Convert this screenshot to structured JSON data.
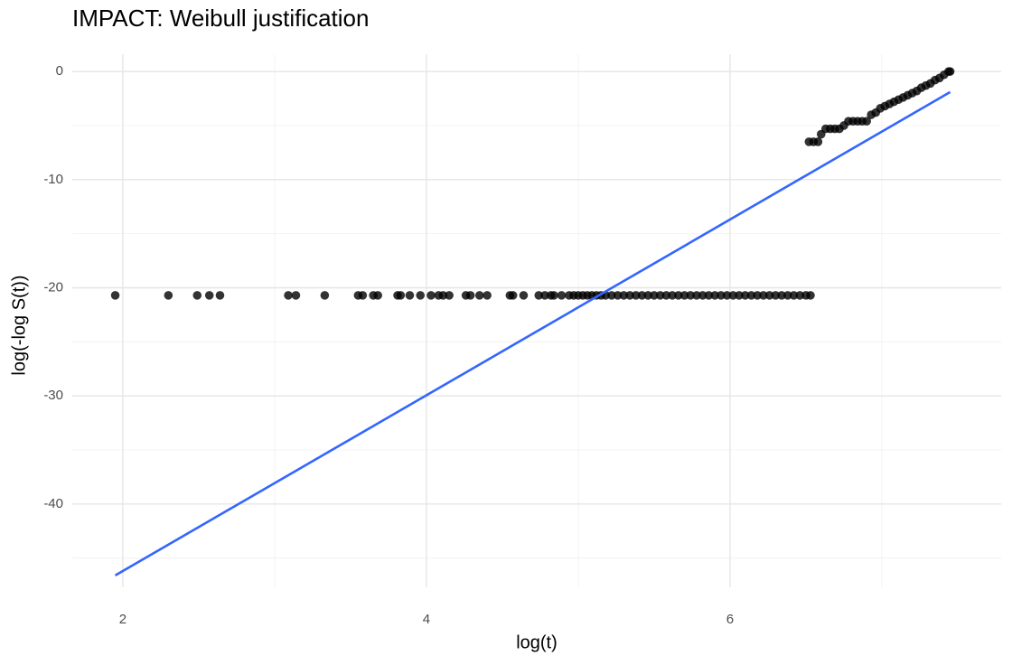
{
  "chart_data": {
    "type": "scatter",
    "title": "IMPACT: Weibull justification",
    "x_label": "log(t)",
    "y_label": "log(-log S(t))",
    "xlim": [
      1.667,
      7.786
    ],
    "ylim": [
      -47.7,
      1.6
    ],
    "xticks": [
      2,
      4,
      6
    ],
    "yticks": [
      0,
      -10,
      -20,
      -30,
      -40
    ],
    "x_minor_grid": [
      3,
      5,
      7
    ],
    "y_minor_grid": [
      -5,
      -15,
      -25,
      -35,
      -45
    ],
    "grid": true,
    "points": {
      "color": "#000000",
      "x": [
        1.95,
        2.3,
        2.49,
        2.57,
        2.64,
        3.09,
        3.14,
        3.33,
        3.55,
        3.58,
        3.65,
        3.68,
        3.81,
        3.83,
        3.89,
        3.96,
        4.03,
        4.08,
        4.11,
        4.15,
        4.26,
        4.29,
        4.35,
        4.4,
        4.55,
        4.57,
        4.64,
        4.74,
        4.78,
        4.82,
        4.84,
        4.89,
        4.94,
        4.97,
        5.0,
        5.03,
        5.06,
        5.09,
        5.12,
        5.15,
        5.18,
        5.22,
        5.26,
        5.3,
        5.34,
        5.38,
        5.42,
        5.46,
        5.5,
        5.54,
        5.58,
        5.62,
        5.66,
        5.7,
        5.74,
        5.78,
        5.82,
        5.86,
        5.9,
        5.94,
        5.98,
        6.02,
        6.06,
        6.1,
        6.14,
        6.18,
        6.22,
        6.26,
        6.3,
        6.34,
        6.38,
        6.42,
        6.46,
        6.5,
        6.53,
        6.52,
        6.55,
        6.58,
        6.6,
        6.63,
        6.66,
        6.69,
        6.72,
        6.75,
        6.78,
        6.81,
        6.84,
        6.87,
        6.9,
        6.93,
        6.96,
        6.99,
        7.02,
        7.05,
        7.08,
        7.11,
        7.14,
        7.17,
        7.2,
        7.23,
        7.26,
        7.29,
        7.32,
        7.35,
        7.38,
        7.41,
        7.44,
        7.45
      ],
      "y": [
        -20.7,
        -20.7,
        -20.7,
        -20.7,
        -20.7,
        -20.7,
        -20.7,
        -20.7,
        -20.7,
        -20.7,
        -20.7,
        -20.7,
        -20.7,
        -20.7,
        -20.7,
        -20.7,
        -20.7,
        -20.7,
        -20.7,
        -20.7,
        -20.7,
        -20.7,
        -20.7,
        -20.7,
        -20.7,
        -20.7,
        -20.7,
        -20.7,
        -20.7,
        -20.7,
        -20.7,
        -20.7,
        -20.7,
        -20.7,
        -20.7,
        -20.7,
        -20.7,
        -20.7,
        -20.7,
        -20.7,
        -20.7,
        -20.7,
        -20.7,
        -20.7,
        -20.7,
        -20.7,
        -20.7,
        -20.7,
        -20.7,
        -20.7,
        -20.7,
        -20.7,
        -20.7,
        -20.7,
        -20.7,
        -20.7,
        -20.7,
        -20.7,
        -20.7,
        -20.7,
        -20.7,
        -20.7,
        -20.7,
        -20.7,
        -20.7,
        -20.7,
        -20.7,
        -20.7,
        -20.7,
        -20.7,
        -20.7,
        -20.7,
        -20.7,
        -20.7,
        -20.7,
        -6.5,
        -6.5,
        -6.5,
        -5.8,
        -5.3,
        -5.3,
        -5.3,
        -5.3,
        -5.0,
        -4.6,
        -4.6,
        -4.6,
        -4.6,
        -4.6,
        -4.0,
        -3.8,
        -3.4,
        -3.2,
        -3.0,
        -2.8,
        -2.6,
        -2.4,
        -2.2,
        -2.0,
        -1.8,
        -1.5,
        -1.3,
        -1.1,
        -0.8,
        -0.6,
        -0.3,
        0,
        0
      ]
    },
    "fit_line": {
      "color": "#3366ff",
      "x": [
        1.95,
        7.45
      ],
      "y": [
        -46.6,
        -1.9
      ]
    }
  }
}
